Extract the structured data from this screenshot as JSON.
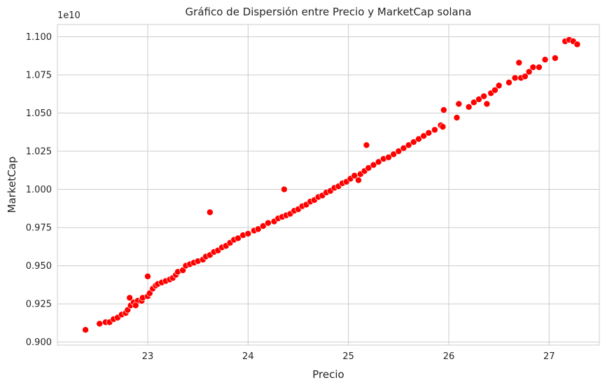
{
  "chart_data": {
    "type": "scatter",
    "title": "Gráfico de Dispersión entre Precio y MarketCap solana",
    "xlabel": "Precio",
    "ylabel": "MarketCap",
    "y_offset_label": "1e10",
    "xlim": [
      22.1,
      27.5
    ],
    "ylim": [
      0.898,
      1.108
    ],
    "x_ticks": [
      23,
      24,
      25,
      26,
      27
    ],
    "x_tick_labels": [
      "23",
      "24",
      "25",
      "26",
      "27"
    ],
    "y_ticks": [
      0.9,
      0.925,
      0.95,
      0.975,
      1.0,
      1.025,
      1.05,
      1.075,
      1.1
    ],
    "y_tick_labels": [
      "0.900",
      "0.925",
      "0.950",
      "0.975",
      "1.000",
      "1.025",
      "1.050",
      "1.075",
      "1.100"
    ],
    "grid": true,
    "point_color": "#ff0000",
    "point_edge_color": "#ffffff",
    "background_color": "#ffffff",
    "grid_color": "#cccccc",
    "series": [
      {
        "points": [
          [
            22.38,
            0.908
          ],
          [
            22.52,
            0.912
          ],
          [
            22.58,
            0.913
          ],
          [
            22.62,
            0.913
          ],
          [
            22.66,
            0.915
          ],
          [
            22.7,
            0.916
          ],
          [
            22.74,
            0.918
          ],
          [
            22.78,
            0.919
          ],
          [
            22.8,
            0.921
          ],
          [
            22.83,
            0.924
          ],
          [
            22.86,
            0.926
          ],
          [
            22.9,
            0.927
          ],
          [
            22.94,
            0.927
          ],
          [
            22.82,
            0.929
          ],
          [
            22.88,
            0.924
          ],
          [
            22.95,
            0.929
          ],
          [
            23.0,
            0.93
          ],
          [
            23.02,
            0.932
          ],
          [
            23.0,
            0.943
          ],
          [
            23.05,
            0.935
          ],
          [
            23.08,
            0.937
          ],
          [
            23.1,
            0.938
          ],
          [
            23.14,
            0.939
          ],
          [
            23.18,
            0.94
          ],
          [
            23.22,
            0.941
          ],
          [
            23.25,
            0.942
          ],
          [
            23.28,
            0.944
          ],
          [
            23.3,
            0.946
          ],
          [
            23.35,
            0.947
          ],
          [
            23.38,
            0.95
          ],
          [
            23.42,
            0.951
          ],
          [
            23.46,
            0.952
          ],
          [
            23.5,
            0.953
          ],
          [
            23.55,
            0.954
          ],
          [
            23.58,
            0.956
          ],
          [
            23.62,
            0.957
          ],
          [
            23.62,
            0.985
          ],
          [
            23.66,
            0.959
          ],
          [
            23.7,
            0.96
          ],
          [
            23.74,
            0.962
          ],
          [
            23.78,
            0.963
          ],
          [
            23.82,
            0.965
          ],
          [
            23.86,
            0.967
          ],
          [
            23.9,
            0.968
          ],
          [
            23.95,
            0.97
          ],
          [
            24.0,
            0.971
          ],
          [
            24.06,
            0.973
          ],
          [
            24.1,
            0.974
          ],
          [
            24.15,
            0.976
          ],
          [
            24.2,
            0.978
          ],
          [
            24.26,
            0.979
          ],
          [
            24.3,
            0.981
          ],
          [
            24.34,
            0.982
          ],
          [
            24.36,
            1.0
          ],
          [
            24.38,
            0.983
          ],
          [
            24.42,
            0.984
          ],
          [
            24.46,
            0.986
          ],
          [
            24.5,
            0.987
          ],
          [
            24.54,
            0.989
          ],
          [
            24.58,
            0.99
          ],
          [
            24.62,
            0.992
          ],
          [
            24.66,
            0.993
          ],
          [
            24.7,
            0.995
          ],
          [
            24.74,
            0.996
          ],
          [
            24.78,
            0.998
          ],
          [
            24.82,
            0.999
          ],
          [
            24.86,
            1.001
          ],
          [
            24.9,
            1.002
          ],
          [
            24.94,
            1.004
          ],
          [
            24.98,
            1.005
          ],
          [
            25.02,
            1.007
          ],
          [
            25.06,
            1.009
          ],
          [
            25.1,
            1.006
          ],
          [
            25.12,
            1.01
          ],
          [
            25.16,
            1.012
          ],
          [
            25.18,
            1.029
          ],
          [
            25.2,
            1.014
          ],
          [
            25.25,
            1.016
          ],
          [
            25.3,
            1.018
          ],
          [
            25.35,
            1.02
          ],
          [
            25.4,
            1.021
          ],
          [
            25.45,
            1.023
          ],
          [
            25.5,
            1.025
          ],
          [
            25.55,
            1.027
          ],
          [
            25.6,
            1.029
          ],
          [
            25.65,
            1.031
          ],
          [
            25.7,
            1.033
          ],
          [
            25.75,
            1.035
          ],
          [
            25.8,
            1.037
          ],
          [
            25.86,
            1.039
          ],
          [
            25.92,
            1.042
          ],
          [
            25.95,
            1.052
          ],
          [
            25.94,
            1.041
          ],
          [
            26.08,
            1.047
          ],
          [
            26.1,
            1.056
          ],
          [
            26.2,
            1.054
          ],
          [
            26.25,
            1.057
          ],
          [
            26.3,
            1.059
          ],
          [
            26.35,
            1.061
          ],
          [
            26.38,
            1.056
          ],
          [
            26.42,
            1.063
          ],
          [
            26.46,
            1.065
          ],
          [
            26.5,
            1.068
          ],
          [
            26.6,
            1.07
          ],
          [
            26.66,
            1.073
          ],
          [
            26.72,
            1.073
          ],
          [
            26.7,
            1.083
          ],
          [
            26.76,
            1.074
          ],
          [
            26.8,
            1.077
          ],
          [
            26.84,
            1.08
          ],
          [
            26.9,
            1.08
          ],
          [
            26.96,
            1.085
          ],
          [
            27.06,
            1.086
          ],
          [
            27.16,
            1.097
          ],
          [
            27.2,
            1.098
          ],
          [
            27.24,
            1.097
          ],
          [
            27.28,
            1.095
          ]
        ]
      }
    ]
  }
}
